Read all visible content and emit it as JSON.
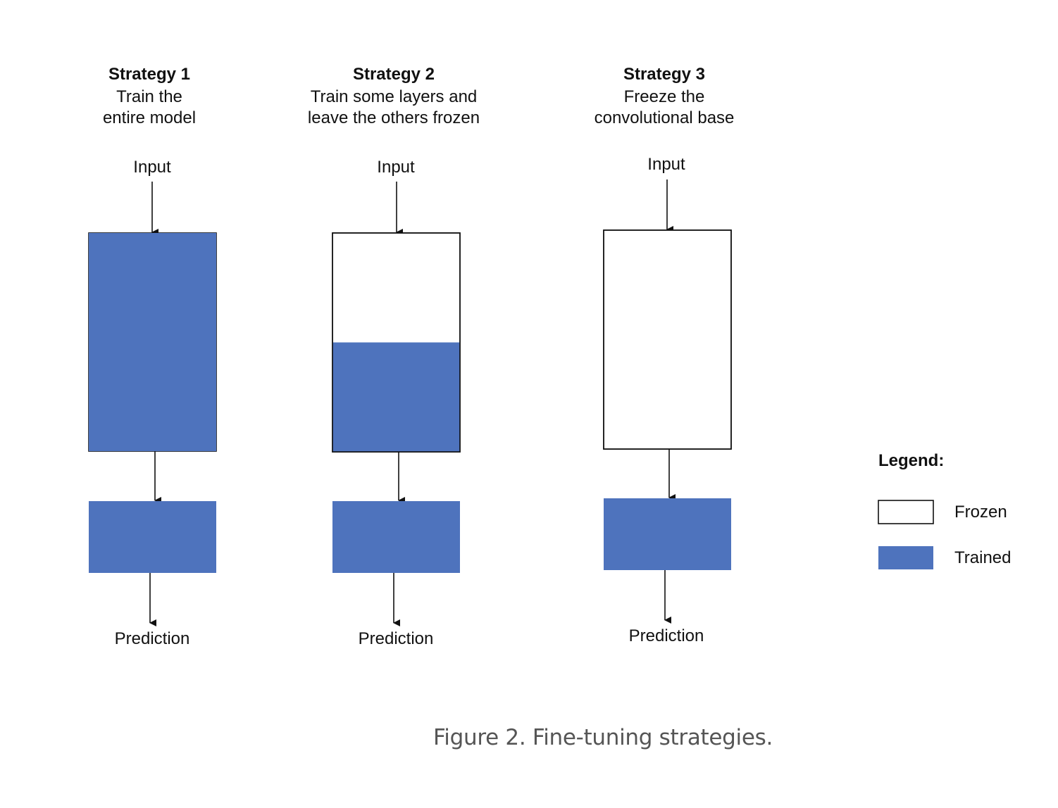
{
  "colors": {
    "trained": "#4e73bd",
    "frozen": "#ffffff",
    "outline": "#111111",
    "caption": "#555555"
  },
  "strategies": [
    {
      "title": "Strategy 1",
      "desc_line1": "Train the",
      "desc_line2": "entire model",
      "input_label": "Input",
      "output_label": "Prediction",
      "base_trained_fraction": 1.0,
      "head_state": "trained"
    },
    {
      "title": "Strategy 2",
      "desc_line1": "Train some layers and",
      "desc_line2": "leave the others frozen",
      "input_label": "Input",
      "output_label": "Prediction",
      "base_trained_fraction": 0.5,
      "head_state": "trained"
    },
    {
      "title": "Strategy 3",
      "desc_line1": "Freeze the",
      "desc_line2": "convolutional base",
      "input_label": "Input",
      "output_label": "Prediction",
      "base_trained_fraction": 0.0,
      "head_state": "trained"
    }
  ],
  "legend": {
    "title": "Legend:",
    "frozen_label": "Frozen",
    "trained_label": "Trained"
  },
  "caption": "Figure 2. Fine-tuning strategies."
}
